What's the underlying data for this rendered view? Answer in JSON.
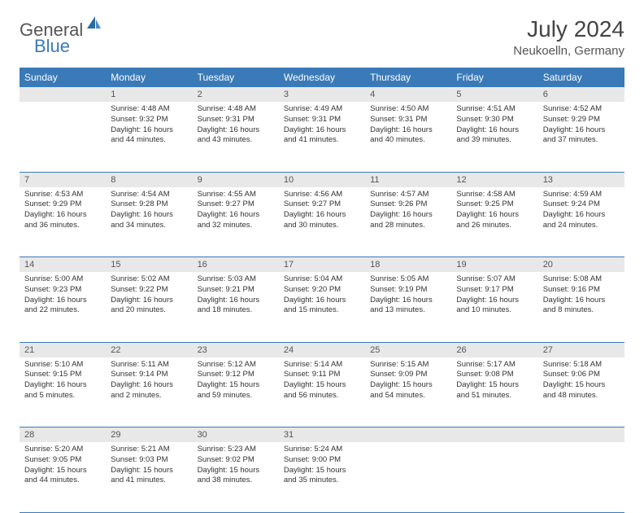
{
  "brand": {
    "name1": "General",
    "name2": "Blue",
    "logo_color": "#2a6aa8"
  },
  "title": "July 2024",
  "location": "Neukoelln, Germany",
  "colors": {
    "header_bg": "#3a7ab8",
    "header_text": "#ffffff",
    "daynum_bg": "#e8e8e8",
    "border": "#3a7ab8",
    "text": "#333333",
    "title_text": "#444444"
  },
  "weekdays": [
    "Sunday",
    "Monday",
    "Tuesday",
    "Wednesday",
    "Thursday",
    "Friday",
    "Saturday"
  ],
  "weeks": [
    [
      {
        "n": "",
        "lines": []
      },
      {
        "n": "1",
        "lines": [
          "Sunrise: 4:48 AM",
          "Sunset: 9:32 PM",
          "Daylight: 16 hours",
          "and 44 minutes."
        ]
      },
      {
        "n": "2",
        "lines": [
          "Sunrise: 4:48 AM",
          "Sunset: 9:31 PM",
          "Daylight: 16 hours",
          "and 43 minutes."
        ]
      },
      {
        "n": "3",
        "lines": [
          "Sunrise: 4:49 AM",
          "Sunset: 9:31 PM",
          "Daylight: 16 hours",
          "and 41 minutes."
        ]
      },
      {
        "n": "4",
        "lines": [
          "Sunrise: 4:50 AM",
          "Sunset: 9:31 PM",
          "Daylight: 16 hours",
          "and 40 minutes."
        ]
      },
      {
        "n": "5",
        "lines": [
          "Sunrise: 4:51 AM",
          "Sunset: 9:30 PM",
          "Daylight: 16 hours",
          "and 39 minutes."
        ]
      },
      {
        "n": "6",
        "lines": [
          "Sunrise: 4:52 AM",
          "Sunset: 9:29 PM",
          "Daylight: 16 hours",
          "and 37 minutes."
        ]
      }
    ],
    [
      {
        "n": "7",
        "lines": [
          "Sunrise: 4:53 AM",
          "Sunset: 9:29 PM",
          "Daylight: 16 hours",
          "and 36 minutes."
        ]
      },
      {
        "n": "8",
        "lines": [
          "Sunrise: 4:54 AM",
          "Sunset: 9:28 PM",
          "Daylight: 16 hours",
          "and 34 minutes."
        ]
      },
      {
        "n": "9",
        "lines": [
          "Sunrise: 4:55 AM",
          "Sunset: 9:27 PM",
          "Daylight: 16 hours",
          "and 32 minutes."
        ]
      },
      {
        "n": "10",
        "lines": [
          "Sunrise: 4:56 AM",
          "Sunset: 9:27 PM",
          "Daylight: 16 hours",
          "and 30 minutes."
        ]
      },
      {
        "n": "11",
        "lines": [
          "Sunrise: 4:57 AM",
          "Sunset: 9:26 PM",
          "Daylight: 16 hours",
          "and 28 minutes."
        ]
      },
      {
        "n": "12",
        "lines": [
          "Sunrise: 4:58 AM",
          "Sunset: 9:25 PM",
          "Daylight: 16 hours",
          "and 26 minutes."
        ]
      },
      {
        "n": "13",
        "lines": [
          "Sunrise: 4:59 AM",
          "Sunset: 9:24 PM",
          "Daylight: 16 hours",
          "and 24 minutes."
        ]
      }
    ],
    [
      {
        "n": "14",
        "lines": [
          "Sunrise: 5:00 AM",
          "Sunset: 9:23 PM",
          "Daylight: 16 hours",
          "and 22 minutes."
        ]
      },
      {
        "n": "15",
        "lines": [
          "Sunrise: 5:02 AM",
          "Sunset: 9:22 PM",
          "Daylight: 16 hours",
          "and 20 minutes."
        ]
      },
      {
        "n": "16",
        "lines": [
          "Sunrise: 5:03 AM",
          "Sunset: 9:21 PM",
          "Daylight: 16 hours",
          "and 18 minutes."
        ]
      },
      {
        "n": "17",
        "lines": [
          "Sunrise: 5:04 AM",
          "Sunset: 9:20 PM",
          "Daylight: 16 hours",
          "and 15 minutes."
        ]
      },
      {
        "n": "18",
        "lines": [
          "Sunrise: 5:05 AM",
          "Sunset: 9:19 PM",
          "Daylight: 16 hours",
          "and 13 minutes."
        ]
      },
      {
        "n": "19",
        "lines": [
          "Sunrise: 5:07 AM",
          "Sunset: 9:17 PM",
          "Daylight: 16 hours",
          "and 10 minutes."
        ]
      },
      {
        "n": "20",
        "lines": [
          "Sunrise: 5:08 AM",
          "Sunset: 9:16 PM",
          "Daylight: 16 hours",
          "and 8 minutes."
        ]
      }
    ],
    [
      {
        "n": "21",
        "lines": [
          "Sunrise: 5:10 AM",
          "Sunset: 9:15 PM",
          "Daylight: 16 hours",
          "and 5 minutes."
        ]
      },
      {
        "n": "22",
        "lines": [
          "Sunrise: 5:11 AM",
          "Sunset: 9:14 PM",
          "Daylight: 16 hours",
          "and 2 minutes."
        ]
      },
      {
        "n": "23",
        "lines": [
          "Sunrise: 5:12 AM",
          "Sunset: 9:12 PM",
          "Daylight: 15 hours",
          "and 59 minutes."
        ]
      },
      {
        "n": "24",
        "lines": [
          "Sunrise: 5:14 AM",
          "Sunset: 9:11 PM",
          "Daylight: 15 hours",
          "and 56 minutes."
        ]
      },
      {
        "n": "25",
        "lines": [
          "Sunrise: 5:15 AM",
          "Sunset: 9:09 PM",
          "Daylight: 15 hours",
          "and 54 minutes."
        ]
      },
      {
        "n": "26",
        "lines": [
          "Sunrise: 5:17 AM",
          "Sunset: 9:08 PM",
          "Daylight: 15 hours",
          "and 51 minutes."
        ]
      },
      {
        "n": "27",
        "lines": [
          "Sunrise: 5:18 AM",
          "Sunset: 9:06 PM",
          "Daylight: 15 hours",
          "and 48 minutes."
        ]
      }
    ],
    [
      {
        "n": "28",
        "lines": [
          "Sunrise: 5:20 AM",
          "Sunset: 9:05 PM",
          "Daylight: 15 hours",
          "and 44 minutes."
        ]
      },
      {
        "n": "29",
        "lines": [
          "Sunrise: 5:21 AM",
          "Sunset: 9:03 PM",
          "Daylight: 15 hours",
          "and 41 minutes."
        ]
      },
      {
        "n": "30",
        "lines": [
          "Sunrise: 5:23 AM",
          "Sunset: 9:02 PM",
          "Daylight: 15 hours",
          "and 38 minutes."
        ]
      },
      {
        "n": "31",
        "lines": [
          "Sunrise: 5:24 AM",
          "Sunset: 9:00 PM",
          "Daylight: 15 hours",
          "and 35 minutes."
        ]
      },
      {
        "n": "",
        "lines": []
      },
      {
        "n": "",
        "lines": []
      },
      {
        "n": "",
        "lines": []
      }
    ]
  ]
}
